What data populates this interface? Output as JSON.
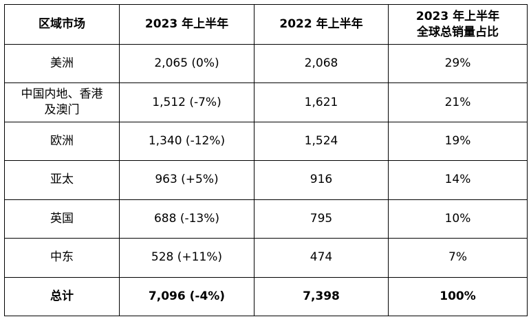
{
  "table": {
    "headers": [
      "区域市场",
      "2023 年上半年",
      "2022 年上半年",
      [
        "2023 年上半年",
        "全球总销量占比"
      ]
    ],
    "rows": [
      {
        "region": "美洲",
        "h1_2023": "2,065 (0%)",
        "h1_2022": "2,068",
        "share": "29%"
      },
      {
        "region": [
          "中国内地、香港",
          "及澳门"
        ],
        "h1_2023": "1,512 (-7%)",
        "h1_2022": "1,621",
        "share": "21%"
      },
      {
        "region": "欧洲",
        "h1_2023": "1,340 (-12%)",
        "h1_2022": "1,524",
        "share": "19%"
      },
      {
        "region": "亚太",
        "h1_2023": "963 (+5%)",
        "h1_2022": "916",
        "share": "14%"
      },
      {
        "region": "英国",
        "h1_2023": "688 (-13%)",
        "h1_2022": "795",
        "share": "10%"
      },
      {
        "region": "中东",
        "h1_2023": "528 (+11%)",
        "h1_2022": "474",
        "share": "7%"
      }
    ],
    "total": {
      "region": "总计",
      "h1_2023": "7,096 (-4%)",
      "h1_2022": "7,398",
      "share": "100%"
    }
  }
}
